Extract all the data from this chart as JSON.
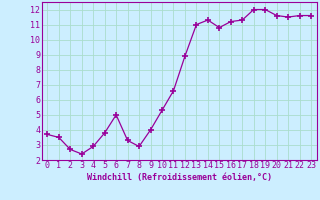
{
  "x": [
    0,
    1,
    2,
    3,
    4,
    5,
    6,
    7,
    8,
    9,
    10,
    11,
    12,
    13,
    14,
    15,
    16,
    17,
    18,
    19,
    20,
    21,
    22,
    23
  ],
  "y": [
    3.7,
    3.5,
    2.7,
    2.4,
    2.9,
    3.8,
    5.0,
    3.3,
    2.9,
    4.0,
    5.3,
    6.6,
    8.9,
    11.0,
    11.3,
    10.8,
    11.2,
    11.3,
    12.0,
    12.0,
    11.6,
    11.5,
    11.6,
    11.6
  ],
  "line_color": "#990099",
  "marker": "+",
  "marker_size": 4,
  "marker_linewidth": 1.2,
  "background_color": "#cceeff",
  "grid_color": "#aaddcc",
  "xlabel": "Windchill (Refroidissement éolien,°C)",
  "xlabel_fontsize": 6.0,
  "tick_color": "#990099",
  "tick_fontsize": 6.0,
  "xlim": [
    -0.5,
    23.5
  ],
  "ylim": [
    2,
    12.5
  ],
  "yticks": [
    2,
    3,
    4,
    5,
    6,
    7,
    8,
    9,
    10,
    11,
    12
  ],
  "xticks": [
    0,
    1,
    2,
    3,
    4,
    5,
    6,
    7,
    8,
    9,
    10,
    11,
    12,
    13,
    14,
    15,
    16,
    17,
    18,
    19,
    20,
    21,
    22,
    23
  ]
}
